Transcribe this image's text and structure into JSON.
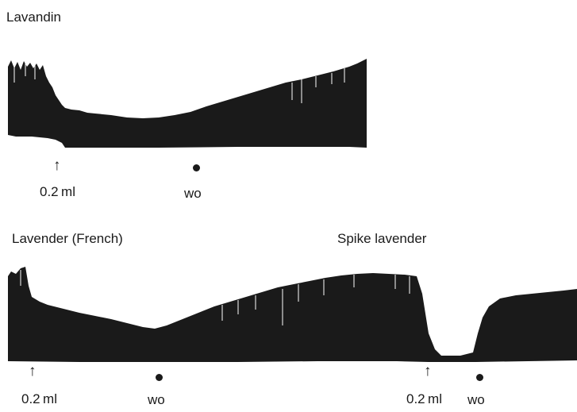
{
  "panels": {
    "top": {
      "title": "Lavandin",
      "dose_label": "0.2 ml",
      "washout_label": "wo"
    },
    "bottom_left": {
      "title": "Lavender (French)",
      "dose_label": "0.2 ml",
      "washout_label": "wo"
    },
    "bottom_right": {
      "title": "Spike lavender",
      "dose_label": "0.2 ml",
      "washout_label": "wo"
    }
  },
  "icons": {
    "dose_marker": "up-arrow-icon",
    "washout_marker": "dot-icon"
  },
  "colors": {
    "trace": "#1a1a1a",
    "background": "#ffffff"
  }
}
